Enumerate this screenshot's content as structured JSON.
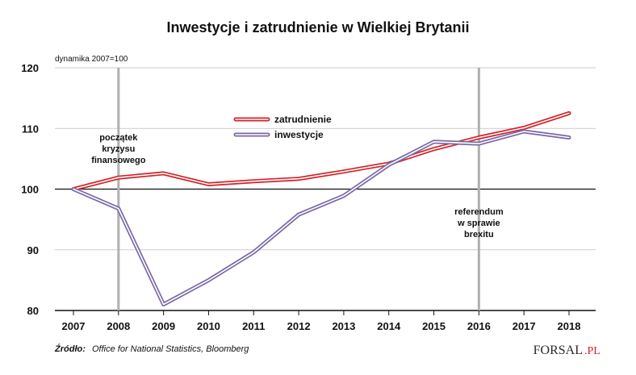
{
  "chart_data": {
    "type": "line",
    "title": "Inwestycje i zatrudnienie w Wielkiej Brytanii",
    "subtitle": "dynamika 2007=100",
    "x": [
      "2007",
      "2008",
      "2009",
      "2010",
      "2011",
      "2012",
      "2013",
      "2014",
      "2015",
      "2016",
      "2017",
      "2018"
    ],
    "ylim": [
      80,
      120
    ],
    "yticks": [
      "80",
      "90",
      "100",
      "110",
      "120"
    ],
    "grid": true,
    "legend_position": "top-center",
    "series": [
      {
        "name": "zatrudnienie",
        "color": "#d42229",
        "values": [
          100,
          101.9,
          102.6,
          100.8,
          101.3,
          101.7,
          102.9,
          104.2,
          106.6,
          108.5,
          110.1,
          112.5
        ]
      },
      {
        "name": "inwestycje",
        "color": "#7b68a6",
        "values": [
          100,
          96.8,
          81.0,
          85.0,
          89.6,
          95.8,
          98.9,
          104.0,
          107.8,
          107.5,
          109.5,
          108.5
        ]
      }
    ],
    "annotations": [
      {
        "year": "2008",
        "lines": [
          "początek",
          "kryzysu",
          "finansowego"
        ]
      },
      {
        "year": "2016",
        "lines": [
          "referendum",
          "w sprawie",
          "brexitu"
        ]
      }
    ]
  },
  "source": {
    "label": "Źródło:",
    "text": "Office for National Statistics, Bloomberg"
  },
  "logo": {
    "text_main": "FORSAL",
    "text_suffix": ".PL"
  },
  "colors": {
    "grid": "#bdbdbd",
    "axis": "#111111",
    "marker_line": "#b0b0b0",
    "logo_red": "#d42229"
  }
}
